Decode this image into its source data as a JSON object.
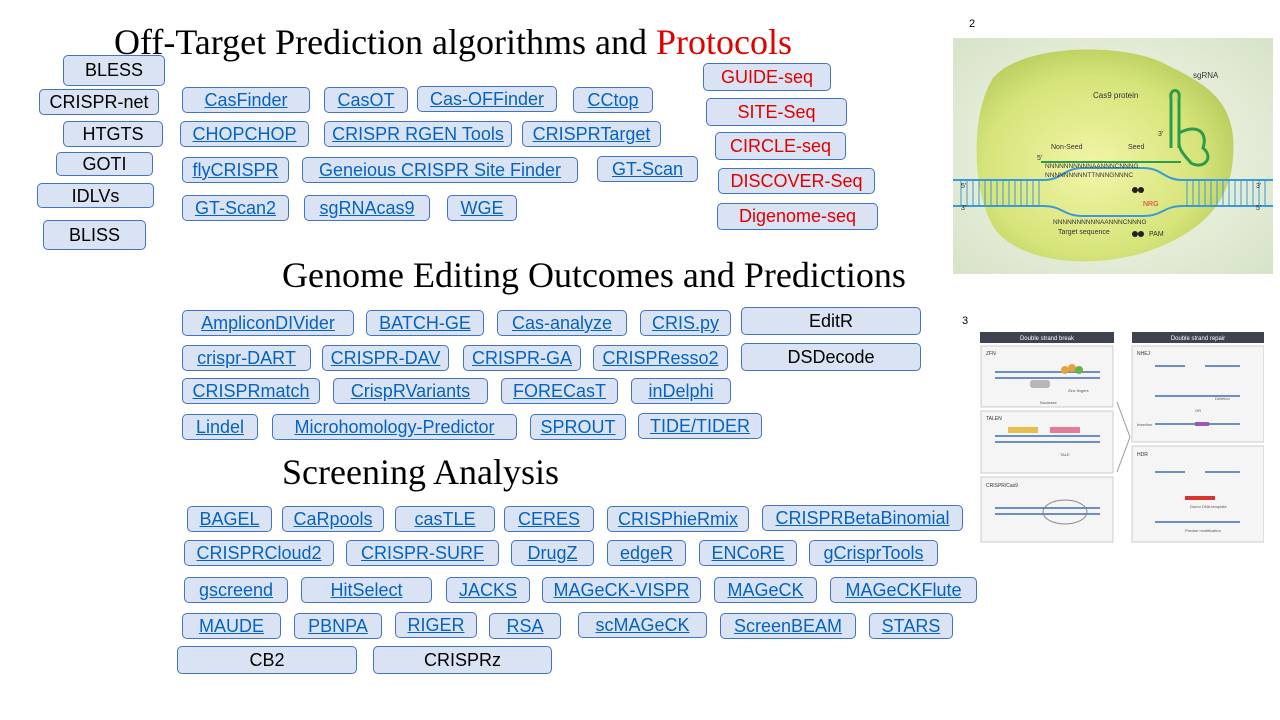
{
  "headings": {
    "offtarget_prefix": "Off-Target Prediction algorithms and ",
    "offtarget_protocols": "Protocols",
    "outcomes": "Genome Editing Outcomes and Predictions",
    "screening": "Screening Analysis"
  },
  "side_tools": [
    "BLESS",
    "CRISPR-net",
    "HTGTS",
    "GOTI",
    "IDLVs",
    "BLISS"
  ],
  "offtarget_tools": [
    "CasFinder",
    "CasOT",
    "Cas-OFFinder",
    "CCtop",
    "CHOPCHOP",
    "CRISPR RGEN Tools",
    "CRISPRTarget",
    "flyCRISPR",
    "Geneious CRISPR Site Finder",
    "GT-Scan",
    "GT-Scan2",
    "sgRNAcas9",
    "WGE"
  ],
  "protocols": [
    "GUIDE-seq",
    "SITE-Seq",
    "CIRCLE-seq",
    "DISCOVER-Seq",
    "Digenome-seq"
  ],
  "outcome_tools": [
    "AmpliconDIVider",
    "BATCH-GE",
    "Cas-analyze",
    "CRIS.py",
    "EditR",
    "crispr-DART",
    "CRISPR-DAV",
    "CRISPR-GA",
    "CRISPResso2",
    "DSDecode",
    "CRISPRmatch",
    "CrispRVariants",
    "FORECasT",
    "inDelphi",
    "Lindel",
    "Microhomology-Predictor",
    "SPROUT",
    "TIDE/TIDER"
  ],
  "screening_tools": [
    "BAGEL",
    "CaRpools",
    "casTLE",
    "CERES",
    "CRISPhieRmix",
    "CRISPRBetaBinomial",
    "CRISPRCloud2",
    "CRISPR-SURF",
    "DrugZ",
    "edgeR",
    "ENCoRE",
    "gCrisprTools",
    "gscreend",
    "HitSelect",
    "JACKS",
    "MAGeCK-VISPR",
    "MAGeCK",
    "MAGeCKFlute",
    "MAUDE",
    "PBNPA",
    "RIGER",
    "RSA",
    "scMAGeCK",
    "ScreenBEAM",
    "STARS",
    "CB2",
    "CRISPRz"
  ],
  "slide_numbers": {
    "fig1": "2",
    "fig2": "3"
  },
  "figure1": {
    "cas9_protein": "Cas9 protein",
    "sgrna": "sgRNA",
    "non_seed": "Non-Seed",
    "seed": "Seed",
    "five_prime": "5'",
    "three_prime": "3'",
    "seq_top": "NNNNNNNNNNAANNNCNNNG",
    "seq_bottom": "NNNNNNNNNTTNNNGNNNC",
    "seq_lower": "NNNNNNNNNNAANNNCNNNG",
    "nrg": "NRG",
    "target_sequence": "Target sequence",
    "pam": "PAM"
  },
  "figure2": {
    "dsb_header": "Double strand break",
    "dsr_header": "Double strand repair",
    "zfn": "ZFN",
    "zinc_fingers": "Zinc fingers",
    "nuclease": "Nuclease",
    "talen": "TALEN",
    "tale": "TALE",
    "crispr_cas9": "CRISPR/Cas9",
    "nhej": "NHEJ",
    "deletion": "Deletion",
    "or": "OR",
    "insertion": "Insertion",
    "hdr": "HDR",
    "donor": "Donor DNA template",
    "precise": "Precise modification"
  },
  "colors": {
    "pill_fill": "#dae3f3",
    "pill_border": "#4472c4",
    "link": "#0563c1",
    "protocol_red": "#e00000"
  }
}
